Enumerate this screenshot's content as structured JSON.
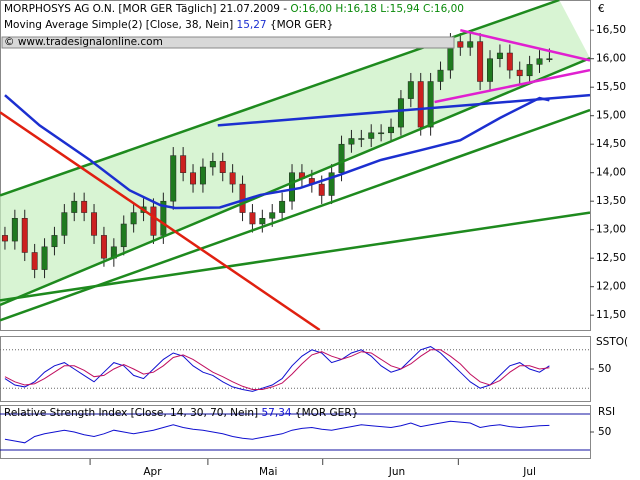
{
  "chart_data": [
    {
      "type": "candlestick",
      "title": "MORPHOSYS AG O.N. [MOR GER  Täglich] 21.07.2009 -",
      "ohlc_label": "O:16,00 H:16,18 L:15,94 C:16,00",
      "copyright": "© www.tradesignalonline.com",
      "currency": "€",
      "up_color": "#1f7a1f",
      "down_color": "#cc2020",
      "open": [
        12.9,
        12.8,
        13.2,
        12.6,
        12.3,
        12.7,
        12.9,
        13.3,
        13.5,
        13.3,
        12.9,
        12.5,
        12.7,
        13.1,
        13.3,
        13.4,
        12.9,
        13.5,
        14.3,
        14.0,
        13.8,
        14.1,
        14.2,
        14.0,
        13.8,
        13.3,
        13.1,
        13.2,
        13.3,
        13.5,
        14.0,
        13.9,
        13.8,
        13.6,
        14.0,
        14.5,
        14.6,
        14.6,
        14.7,
        14.7,
        14.8,
        15.3,
        15.6,
        14.8,
        15.6,
        15.8,
        16.3,
        16.2,
        16.3,
        15.6,
        16.0,
        16.1,
        15.8,
        15.7,
        15.9,
        16.0
      ],
      "high": [
        13.05,
        13.35,
        13.35,
        12.75,
        12.85,
        13.05,
        13.45,
        13.65,
        13.65,
        13.45,
        13.05,
        12.85,
        13.25,
        13.45,
        13.55,
        13.55,
        13.65,
        14.45,
        14.45,
        14.15,
        14.25,
        14.35,
        14.35,
        14.15,
        13.95,
        13.45,
        13.35,
        13.45,
        13.65,
        14.15,
        14.15,
        14.05,
        13.95,
        14.15,
        14.65,
        14.75,
        14.75,
        14.85,
        14.85,
        14.95,
        15.45,
        15.75,
        15.75,
        15.75,
        15.95,
        16.45,
        16.45,
        16.45,
        16.45,
        16.15,
        16.25,
        16.25,
        15.95,
        16.05,
        16.15,
        16.18
      ],
      "low": [
        12.65,
        12.65,
        12.45,
        12.15,
        12.15,
        12.55,
        12.75,
        13.15,
        13.15,
        12.75,
        12.35,
        12.35,
        12.55,
        12.95,
        13.15,
        12.75,
        12.75,
        13.35,
        13.85,
        13.65,
        13.65,
        13.95,
        13.85,
        13.65,
        13.15,
        12.95,
        12.95,
        13.05,
        13.15,
        13.35,
        13.75,
        13.65,
        13.45,
        13.45,
        13.85,
        14.35,
        14.45,
        14.45,
        14.55,
        14.55,
        14.65,
        15.15,
        14.65,
        14.65,
        15.45,
        15.65,
        16.05,
        16.05,
        15.45,
        15.45,
        15.85,
        15.65,
        15.55,
        15.55,
        15.75,
        15.94
      ],
      "close": [
        12.8,
        13.2,
        12.6,
        12.3,
        12.7,
        12.9,
        13.3,
        13.5,
        13.3,
        12.9,
        12.5,
        12.7,
        13.1,
        13.3,
        13.4,
        12.9,
        13.5,
        14.3,
        14.0,
        13.8,
        14.1,
        14.2,
        14.0,
        13.8,
        13.3,
        13.1,
        13.2,
        13.3,
        13.5,
        14.0,
        13.9,
        13.8,
        13.6,
        14.0,
        14.5,
        14.6,
        14.6,
        14.7,
        14.7,
        14.8,
        15.3,
        15.6,
        14.8,
        15.6,
        15.8,
        16.3,
        16.2,
        16.3,
        15.6,
        16.0,
        16.1,
        15.8,
        15.7,
        15.9,
        16.0,
        16.0
      ],
      "xlim": [
        -0.5,
        59.1
      ],
      "xticks": [
        8.6,
        20.5,
        32.1,
        45.8
      ],
      "month_labels": [
        {
          "value": 14.9,
          "label": "Apr"
        },
        {
          "value": 26.6,
          "label": "Mai"
        },
        {
          "value": 39.6,
          "label": "Jun"
        },
        {
          "value": 53,
          "label": "Jul"
        }
      ],
      "ylim": [
        11.24,
        17.03
      ],
      "yticks": [
        {
          "value": 11.5,
          "label": "11,50"
        },
        {
          "value": 12,
          "label": "12,00"
        },
        {
          "value": 12.5,
          "label": "12,50"
        },
        {
          "value": 13,
          "label": "13,00"
        },
        {
          "value": 13.5,
          "label": "13,50"
        },
        {
          "value": 14,
          "label": "14,00"
        },
        {
          "value": 14.5,
          "label": "14,50"
        },
        {
          "value": 15,
          "label": "15,00"
        },
        {
          "value": 15.5,
          "label": "15,50"
        },
        {
          "value": 16,
          "label": "16,00"
        },
        {
          "value": 16.5,
          "label": "16,50"
        }
      ],
      "moving_average": {
        "label": "Moving Average Simple(2) [Close, 38, Nein]",
        "value_label": "15,27",
        "source": "{MOR GER}",
        "color": "#1c2fd0",
        "x": [
          0,
          3.5,
          8.6,
          12.6,
          15.7,
          17.2,
          21.7,
          25.8,
          29.8,
          33.8,
          37.9,
          41.9,
          46,
          50,
          54,
          55
        ],
        "values": [
          15.36,
          14.83,
          14.22,
          13.69,
          13.43,
          13.38,
          13.39,
          13.61,
          13.73,
          13.96,
          14.22,
          14.39,
          14.57,
          14.96,
          15.31,
          15.27
        ]
      },
      "lines": [
        {
          "color": "#1e8a1e",
          "x": [
            -0.5,
            56
          ],
          "y": [
            13.6,
            17.03
          ]
        },
        {
          "color": "#1e8a1e",
          "x": [
            -0.5,
            59.1
          ],
          "y": [
            11.68,
            16.01
          ]
        },
        {
          "color": "#1e8a1e",
          "x": [
            -0.5,
            59.1
          ],
          "y": [
            11.41,
            15.1
          ]
        },
        {
          "color": "#1e8a1e",
          "x": [
            -0.5,
            59.1
          ],
          "y": [
            11.76,
            13.3
          ]
        },
        {
          "color": "#e02010",
          "x": [
            -0.5,
            31.8
          ],
          "y": [
            15.06,
            11.24
          ]
        },
        {
          "color": "#1c2fd0",
          "x": [
            21.5,
            59.1
          ],
          "y": [
            14.83,
            15.36
          ]
        },
        {
          "color": "#e020d0",
          "x": [
            46,
            59.1
          ],
          "y": [
            16.5,
            15.97
          ]
        },
        {
          "color": "#e020d0",
          "x": [
            43.4,
            59.1
          ],
          "y": [
            15.24,
            15.8
          ]
        }
      ]
    },
    {
      "type": "line",
      "label": "SSTO(",
      "xlim": [
        -0.5,
        59.1
      ],
      "ylim": [
        0,
        100
      ],
      "yticks": [
        50
      ],
      "levels": [
        20,
        80
      ],
      "series": [
        {
          "color": "#1010d0",
          "values": [
            35,
            25,
            22,
            30,
            45,
            55,
            60,
            50,
            40,
            30,
            45,
            60,
            55,
            40,
            35,
            50,
            65,
            75,
            70,
            55,
            45,
            40,
            30,
            22,
            18,
            15,
            20,
            25,
            35,
            55,
            70,
            80,
            75,
            60,
            65,
            75,
            80,
            70,
            55,
            45,
            50,
            65,
            80,
            85,
            75,
            60,
            45,
            30,
            20,
            25,
            40,
            55,
            60,
            50,
            45,
            55
          ]
        },
        {
          "color": "#c01060",
          "values": [
            38,
            30,
            25,
            27,
            35,
            45,
            55,
            55,
            48,
            38,
            40,
            50,
            57,
            50,
            42,
            45,
            55,
            68,
            72,
            65,
            55,
            45,
            38,
            30,
            23,
            18,
            18,
            22,
            28,
            42,
            58,
            72,
            77,
            70,
            65,
            70,
            77,
            75,
            65,
            55,
            50,
            58,
            70,
            80,
            80,
            70,
            58,
            42,
            30,
            25,
            32,
            45,
            55,
            55,
            50,
            52
          ]
        }
      ]
    },
    {
      "type": "line",
      "label": "RSI",
      "title": "Relative Strength Index [Close, 14, 30, 70, Nein]",
      "value_label": "57,34",
      "source": "{MOR GER}",
      "xlim": [
        -0.5,
        59.1
      ],
      "ylim": [
        20,
        80
      ],
      "yticks": [
        50
      ],
      "levels": [
        30,
        70
      ],
      "series": [
        {
          "color": "#1010d0",
          "values": [
            42,
            40,
            38,
            45,
            48,
            50,
            52,
            50,
            47,
            45,
            48,
            52,
            50,
            48,
            50,
            52,
            55,
            58,
            55,
            53,
            52,
            50,
            48,
            45,
            43,
            42,
            44,
            46,
            48,
            52,
            54,
            55,
            53,
            52,
            54,
            56,
            58,
            57,
            56,
            55,
            57,
            60,
            56,
            58,
            60,
            62,
            61,
            60,
            55,
            57,
            58,
            56,
            55,
            56,
            57,
            57.34
          ]
        }
      ]
    }
  ]
}
